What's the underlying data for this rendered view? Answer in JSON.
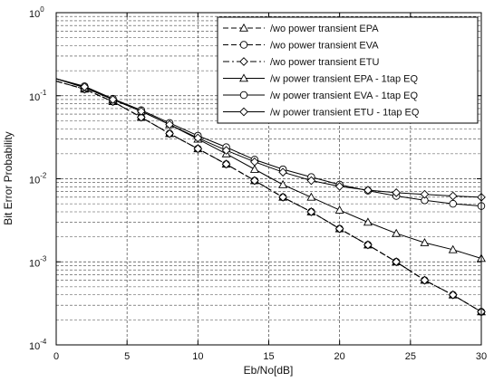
{
  "chart_data": {
    "type": "line",
    "title": "",
    "xlabel": "Eb/No[dB]",
    "ylabel": "Bit Error Probability",
    "xlim": [
      0,
      30
    ],
    "ylim": [
      0.0001,
      1
    ],
    "yscale": "log",
    "grid": true,
    "legend_position": "top-right",
    "x_ticks": [
      0,
      5,
      10,
      15,
      20,
      25,
      30
    ],
    "x_tick_labels": [
      "0",
      "5",
      "10",
      "15",
      "20",
      "25",
      "30"
    ],
    "y_ticks": [
      0.0001,
      0.001,
      0.01,
      0.1,
      1
    ],
    "y_tick_labels": [
      {
        "base": "10",
        "exp": "-4"
      },
      {
        "base": "10",
        "exp": "-3"
      },
      {
        "base": "10",
        "exp": "-2"
      },
      {
        "base": "10",
        "exp": "-1"
      },
      {
        "base": "10",
        "exp": "0"
      }
    ],
    "series": [
      {
        "name": "/wo power transient EPA",
        "marker": "triangle",
        "dash": "dashed",
        "x": [
          0,
          2,
          4,
          6,
          8,
          10,
          12,
          14,
          16,
          18,
          20,
          22,
          24,
          26,
          28,
          30
        ],
        "y": [
          0.15,
          0.12,
          0.085,
          0.055,
          0.035,
          0.023,
          0.015,
          0.0095,
          0.006,
          0.004,
          0.0025,
          0.0016,
          0.001,
          0.0006,
          0.0004,
          0.00025
        ]
      },
      {
        "name": "/wo power transient EVA",
        "marker": "circle",
        "dash": "dashed",
        "x": [
          0,
          2,
          4,
          6,
          8,
          10,
          12,
          14,
          16,
          18,
          20,
          22,
          24,
          26,
          28,
          30
        ],
        "y": [
          0.15,
          0.12,
          0.085,
          0.055,
          0.035,
          0.023,
          0.015,
          0.0095,
          0.006,
          0.004,
          0.0025,
          0.0016,
          0.001,
          0.0006,
          0.0004,
          0.00025
        ]
      },
      {
        "name": "/wo power transient ETU",
        "marker": "diamond",
        "dash": "dashdot",
        "x": [
          0,
          2,
          4,
          6,
          8,
          10,
          12,
          14,
          16,
          18,
          20,
          22,
          24,
          26,
          28,
          30
        ],
        "y": [
          0.15,
          0.12,
          0.085,
          0.055,
          0.035,
          0.023,
          0.015,
          0.0095,
          0.006,
          0.004,
          0.0025,
          0.0016,
          0.001,
          0.0006,
          0.0004,
          0.00025
        ]
      },
      {
        "name": "/w power transient EPA  - 1tap EQ",
        "marker": "triangle",
        "dash": "solid",
        "x": [
          0,
          2,
          4,
          6,
          8,
          10,
          12,
          14,
          16,
          18,
          20,
          22,
          24,
          26,
          28,
          30
        ],
        "y": [
          0.16,
          0.125,
          0.09,
          0.065,
          0.045,
          0.03,
          0.02,
          0.013,
          0.0085,
          0.006,
          0.0042,
          0.003,
          0.0022,
          0.0017,
          0.0014,
          0.0011
        ]
      },
      {
        "name": "/w power transient EVA  - 1tap EQ",
        "marker": "circle",
        "dash": "solid",
        "x": [
          0,
          2,
          4,
          6,
          8,
          10,
          12,
          14,
          16,
          18,
          20,
          22,
          24,
          26,
          28,
          30
        ],
        "y": [
          0.16,
          0.13,
          0.092,
          0.067,
          0.047,
          0.033,
          0.024,
          0.017,
          0.013,
          0.0105,
          0.0085,
          0.0072,
          0.0062,
          0.0055,
          0.005,
          0.0047
        ]
      },
      {
        "name": "/w power transient ETU  - 1tap EQ",
        "marker": "diamond",
        "dash": "solid",
        "x": [
          0,
          2,
          4,
          6,
          8,
          10,
          12,
          14,
          16,
          18,
          20,
          22,
          24,
          26,
          28,
          30
        ],
        "y": [
          0.16,
          0.128,
          0.09,
          0.065,
          0.045,
          0.031,
          0.022,
          0.016,
          0.012,
          0.0095,
          0.0081,
          0.0073,
          0.0068,
          0.0065,
          0.0062,
          0.006
        ]
      }
    ]
  }
}
